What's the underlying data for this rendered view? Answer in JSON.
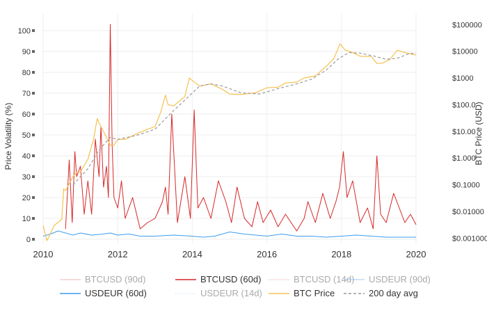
{
  "chart_data": {
    "type": "line",
    "ylabel": "Price Volatility (%)",
    "y2label": "BTC Price (USD)",
    "x_ticks": [
      "2010",
      "2012",
      "2014",
      "2016",
      "2018",
      "2020"
    ],
    "y_ticks": [
      "0",
      "10",
      "20",
      "30",
      "40",
      "50",
      "60",
      "70",
      "80",
      "90",
      "100"
    ],
    "y2_ticks": [
      "$0.001000",
      "$0.01000",
      "$0.1000",
      "$1.000",
      "$10.00",
      "$100.0",
      "$1000",
      "$10000",
      "$100000"
    ],
    "xlim": [
      2010.0,
      2020.0
    ],
    "ylim": [
      -2,
      108
    ],
    "y2lim_log10": [
      -3.2,
      5.4
    ],
    "grid": true,
    "legend_position": "bottom",
    "series": [
      {
        "name": "BTCUSD (90d)",
        "axis": "left",
        "visible": false,
        "color": "#e8a1a1",
        "dash": "solid",
        "x": [],
        "y": []
      },
      {
        "name": "BTCUSD (60d)",
        "axis": "left",
        "visible": true,
        "color": "#d62728",
        "dash": "solid",
        "x": [
          2010.6,
          2010.7,
          2010.78,
          2010.85,
          2010.9,
          2011.0,
          2011.1,
          2011.2,
          2011.3,
          2011.4,
          2011.5,
          2011.55,
          2011.62,
          2011.7,
          2011.75,
          2011.8,
          2011.85,
          2011.9,
          2012.0,
          2012.1,
          2012.2,
          2012.4,
          2012.6,
          2012.8,
          2013.0,
          2013.2,
          2013.28,
          2013.35,
          2013.45,
          2013.6,
          2013.8,
          2013.95,
          2014.05,
          2014.15,
          2014.3,
          2014.5,
          2014.7,
          2014.9,
          2015.05,
          2015.2,
          2015.4,
          2015.6,
          2015.75,
          2015.9,
          2016.1,
          2016.3,
          2016.5,
          2016.65,
          2016.8,
          2017.0,
          2017.1,
          2017.3,
          2017.5,
          2017.7,
          2017.85,
          2017.95,
          2018.05,
          2018.15,
          2018.3,
          2018.5,
          2018.7,
          2018.85,
          2018.95,
          2019.05,
          2019.2,
          2019.4,
          2019.55,
          2019.7,
          2019.85,
          2020.0
        ],
        "y": [
          5,
          38,
          8,
          42,
          30,
          35,
          12,
          28,
          12,
          48,
          30,
          54,
          25,
          35,
          20,
          103,
          45,
          20,
          15,
          28,
          10,
          20,
          5,
          8,
          10,
          18,
          25,
          12,
          60,
          8,
          30,
          10,
          62,
          15,
          20,
          10,
          28,
          18,
          8,
          25,
          10,
          6,
          18,
          8,
          14,
          6,
          12,
          8,
          4,
          10,
          18,
          8,
          22,
          10,
          18,
          25,
          42,
          20,
          28,
          8,
          15,
          5,
          40,
          12,
          8,
          22,
          15,
          8,
          12,
          7
        ]
      },
      {
        "name": "BTCUSD (14d)",
        "axis": "left",
        "visible": false,
        "color": "#f2c4c4",
        "dash": "solid",
        "x": [],
        "y": []
      },
      {
        "name": "USDEUR (90d)",
        "axis": "left",
        "visible": false,
        "color": "#7fb6f0",
        "dash": "solid",
        "x": [],
        "y": []
      },
      {
        "name": "USDEUR (60d)",
        "axis": "left",
        "visible": true,
        "color": "#3d9cf0",
        "dash": "solid",
        "x": [
          2010.0,
          2010.2,
          2010.4,
          2010.6,
          2010.8,
          2011.0,
          2011.3,
          2011.6,
          2011.8,
          2012.0,
          2012.3,
          2012.6,
          2013.0,
          2013.5,
          2014.0,
          2014.3,
          2014.6,
          2015.0,
          2015.2,
          2015.4,
          2015.7,
          2016.0,
          2016.4,
          2016.8,
          2017.2,
          2017.6,
          2018.0,
          2018.4,
          2018.8,
          2019.2,
          2019.6,
          2020.0
        ],
        "y": [
          1.5,
          2.5,
          4.0,
          3.0,
          2.0,
          3.0,
          2.0,
          2.5,
          3.0,
          2.0,
          2.5,
          1.5,
          1.5,
          2.0,
          1.5,
          1.0,
          1.5,
          3.5,
          3.0,
          2.5,
          2.0,
          1.5,
          2.5,
          1.5,
          1.5,
          1.0,
          1.5,
          2.0,
          1.5,
          1.0,
          1.0,
          1.0
        ]
      },
      {
        "name": "USDEUR (14d)",
        "axis": "left",
        "visible": false,
        "color": "#a9cdf2",
        "dash": "dot",
        "x": [],
        "y": []
      },
      {
        "name": "BTC Price",
        "axis": "right",
        "visible": true,
        "color": "#f5c150",
        "dash": "solid",
        "x": [
          2010.0,
          2010.1,
          2010.3,
          2010.5,
          2010.55,
          2010.6,
          2010.8,
          2010.9,
          2011.0,
          2011.2,
          2011.35,
          2011.45,
          2011.55,
          2011.7,
          2011.8,
          2011.9,
          2012.0,
          2012.2,
          2012.5,
          2012.8,
          2013.0,
          2013.15,
          2013.28,
          2013.35,
          2013.5,
          2013.8,
          2013.92,
          2014.0,
          2014.2,
          2014.5,
          2014.8,
          2015.0,
          2015.3,
          2015.7,
          2016.0,
          2016.3,
          2016.5,
          2016.8,
          2017.0,
          2017.3,
          2017.6,
          2017.8,
          2017.96,
          2018.1,
          2018.3,
          2018.5,
          2018.8,
          2018.95,
          2019.1,
          2019.3,
          2019.5,
          2019.7,
          2019.85,
          2020.0
        ],
        "y": [
          0.003,
          0.0008,
          0.003,
          0.005,
          0.07,
          0.06,
          0.2,
          0.3,
          0.3,
          0.9,
          5.0,
          30.0,
          15.0,
          6.0,
          3.0,
          3.0,
          5.0,
          5.0,
          8.0,
          12.0,
          15.0,
          50.0,
          230.0,
          100.0,
          90.0,
          200.0,
          1000.0,
          800.0,
          500.0,
          600.0,
          380.0,
          250.0,
          240.0,
          280.0,
          430.0,
          450.0,
          650.0,
          700.0,
          1000.0,
          1200.0,
          2800.0,
          5500.0,
          19000.0,
          11000.0,
          9000.0,
          6500.0,
          6400.0,
          3500.0,
          3600.0,
          5000.0,
          11000.0,
          9000.0,
          8000.0,
          7200.0
        ]
      },
      {
        "name": "200 day avg",
        "axis": "right",
        "visible": true,
        "color": "#999999",
        "dash": "dash",
        "x": [
          2010.8,
          2011.2,
          2011.5,
          2011.8,
          2012.0,
          2012.5,
          2013.0,
          2013.5,
          2013.9,
          2014.2,
          2014.5,
          2014.8,
          2015.0,
          2015.3,
          2015.8,
          2016.3,
          2016.8,
          2017.2,
          2017.6,
          2017.9,
          2018.2,
          2018.5,
          2018.9,
          2019.2,
          2019.5,
          2019.8,
          2020.0
        ],
        "y": [
          0.1,
          0.4,
          2.0,
          6.0,
          5.0,
          7.0,
          12.0,
          60.0,
          200.0,
          500.0,
          600.0,
          500.0,
          400.0,
          280.0,
          250.0,
          400.0,
          600.0,
          900.0,
          2000.0,
          5000.0,
          9000.0,
          8500.0,
          6500.0,
          5000.0,
          5500.0,
          8000.0,
          8500.0
        ]
      }
    ]
  }
}
